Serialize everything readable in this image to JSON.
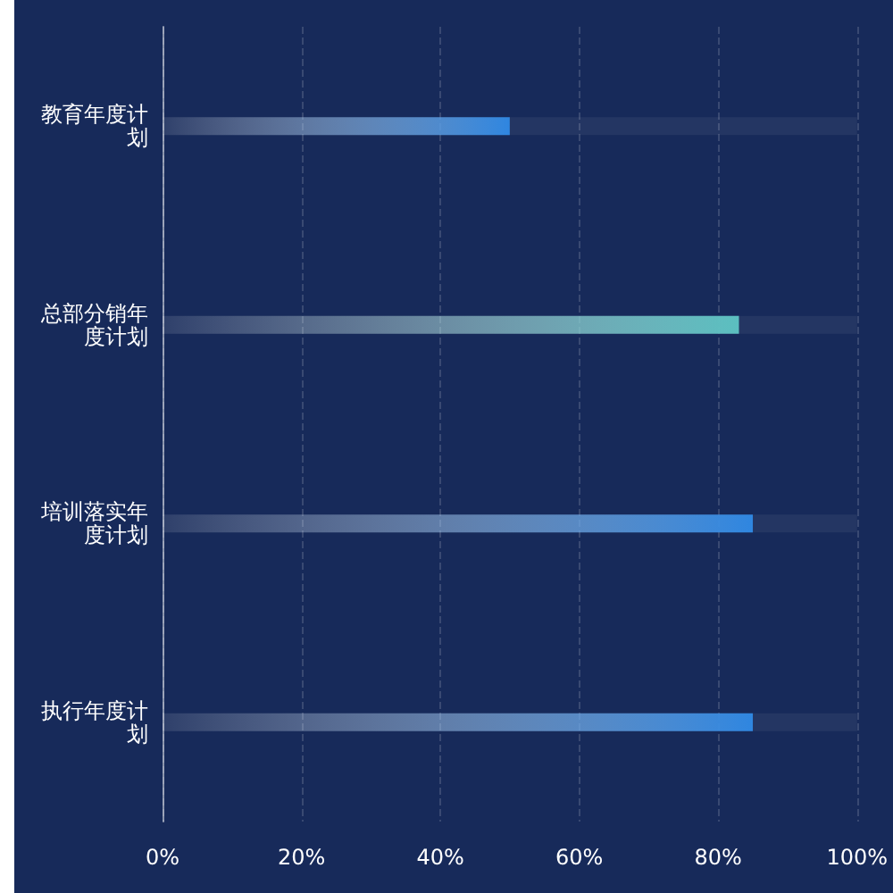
{
  "chart_data": {
    "type": "bar",
    "orientation": "horizontal",
    "categories": [
      "教育年度计划",
      "总部分销年度计划",
      "培训落实年度计划",
      "执行年度计划"
    ],
    "values": [
      50,
      83,
      85,
      85
    ],
    "colors": [
      "#2f86e0",
      "#5bbfc0",
      "#2f86e0",
      "#2f86e0"
    ],
    "xlim": [
      0,
      100
    ],
    "xticks": [
      {
        "value": 0,
        "label": "0%"
      },
      {
        "value": 20,
        "label": "20%"
      },
      {
        "value": 40,
        "label": "40%"
      },
      {
        "value": 60,
        "label": "60%"
      },
      {
        "value": 80,
        "label": "80%"
      },
      {
        "value": 100,
        "label": "100%"
      }
    ],
    "grid": "x"
  }
}
